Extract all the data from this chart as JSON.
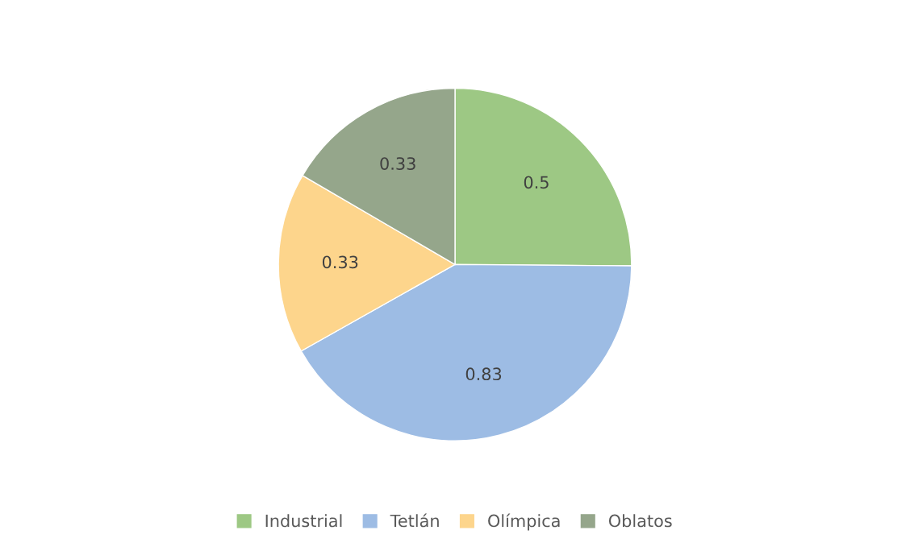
{
  "chart_data": {
    "type": "pie",
    "categories": [
      "Industrial",
      "Tetlán",
      "Olímpica",
      "Oblatos"
    ],
    "values": [
      0.5,
      0.83,
      0.33,
      0.33
    ],
    "colors": [
      "#9dc884",
      "#9dbce4",
      "#fdd58c",
      "#95a68b"
    ],
    "data_labels": true,
    "legend": "bottom"
  }
}
